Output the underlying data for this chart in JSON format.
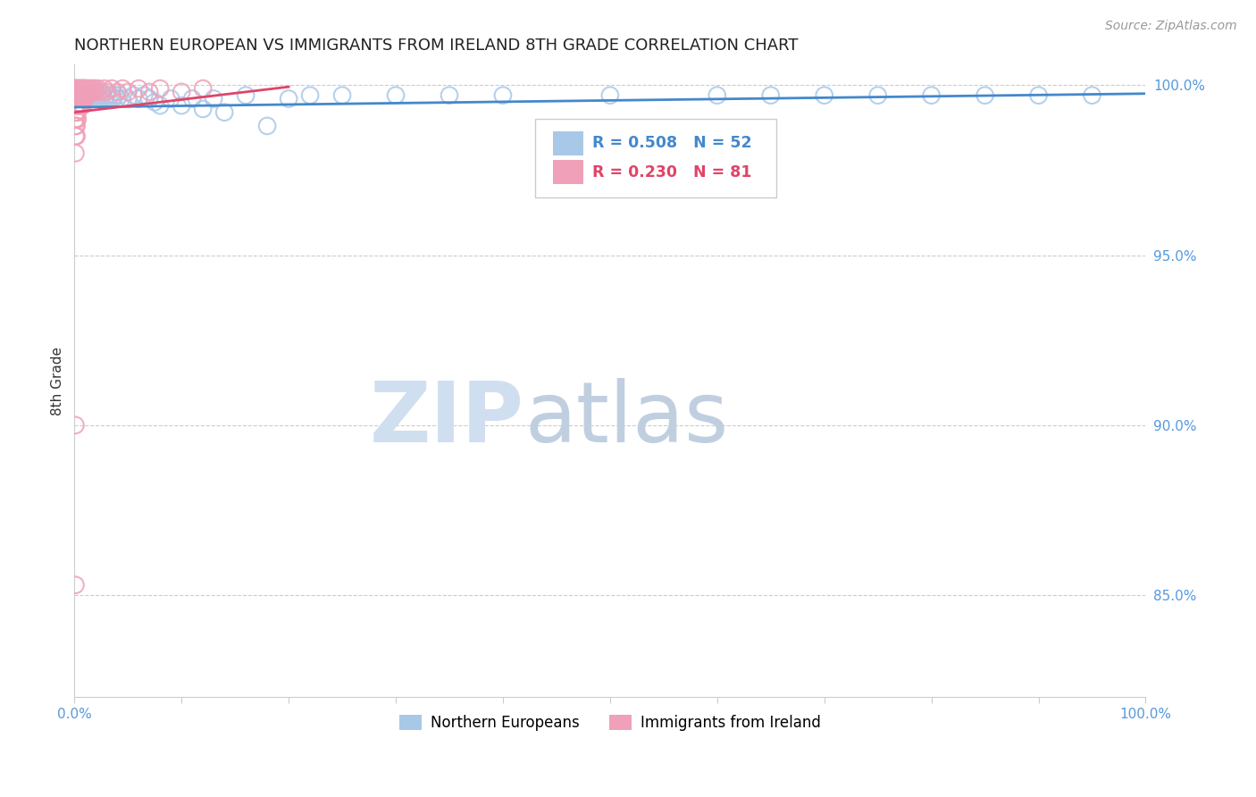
{
  "title": "NORTHERN EUROPEAN VS IMMIGRANTS FROM IRELAND 8TH GRADE CORRELATION CHART",
  "source": "Source: ZipAtlas.com",
  "ylabel": "8th Grade",
  "right_yticks": [
    "85.0%",
    "90.0%",
    "95.0%",
    "100.0%"
  ],
  "right_ytick_vals": [
    0.85,
    0.9,
    0.95,
    1.0
  ],
  "legend_blue_r": "R = 0.508",
  "legend_blue_n": "N = 52",
  "legend_pink_r": "R = 0.230",
  "legend_pink_n": "N = 81",
  "legend_label_blue": "Northern Europeans",
  "legend_label_pink": "Immigrants from Ireland",
  "blue_color": "#A8C8E8",
  "pink_color": "#F0A0B8",
  "blue_line_color": "#4488CC",
  "pink_line_color": "#E04468",
  "background_color": "#FFFFFF",
  "watermark_color": "#D0DFF0",
  "blue_scatter_x": [
    0.002,
    0.004,
    0.006,
    0.008,
    0.01,
    0.012,
    0.014,
    0.016,
    0.018,
    0.02,
    0.022,
    0.024,
    0.026,
    0.028,
    0.03,
    0.032,
    0.034,
    0.036,
    0.038,
    0.04,
    0.042,
    0.044,
    0.05,
    0.055,
    0.06,
    0.065,
    0.07,
    0.075,
    0.08,
    0.09,
    0.1,
    0.11,
    0.12,
    0.13,
    0.14,
    0.16,
    0.18,
    0.2,
    0.22,
    0.25,
    0.3,
    0.35,
    0.4,
    0.5,
    0.6,
    0.65,
    0.7,
    0.75,
    0.8,
    0.85,
    0.9,
    0.95
  ],
  "blue_scatter_y": [
    0.997,
    0.996,
    0.997,
    0.996,
    0.997,
    0.996,
    0.997,
    0.996,
    0.997,
    0.996,
    0.997,
    0.996,
    0.997,
    0.996,
    0.997,
    0.996,
    0.997,
    0.996,
    0.997,
    0.996,
    0.997,
    0.996,
    0.996,
    0.997,
    0.996,
    0.997,
    0.996,
    0.995,
    0.994,
    0.996,
    0.994,
    0.996,
    0.993,
    0.996,
    0.992,
    0.997,
    0.988,
    0.996,
    0.997,
    0.997,
    0.997,
    0.997,
    0.997,
    0.997,
    0.997,
    0.997,
    0.997,
    0.997,
    0.997,
    0.997,
    0.997,
    0.997
  ],
  "pink_scatter_x": [
    0.0005,
    0.001,
    0.001,
    0.0015,
    0.002,
    0.002,
    0.002,
    0.003,
    0.003,
    0.003,
    0.004,
    0.004,
    0.004,
    0.005,
    0.005,
    0.005,
    0.006,
    0.006,
    0.006,
    0.007,
    0.007,
    0.008,
    0.008,
    0.009,
    0.009,
    0.01,
    0.01,
    0.011,
    0.012,
    0.013,
    0.014,
    0.015,
    0.016,
    0.017,
    0.018,
    0.019,
    0.02,
    0.022,
    0.025,
    0.028,
    0.03,
    0.035,
    0.04,
    0.045,
    0.05,
    0.06,
    0.07,
    0.08,
    0.1,
    0.12,
    0.001,
    0.002,
    0.003,
    0.004,
    0.005,
    0.006,
    0.007,
    0.008,
    0.009,
    0.01,
    0.001,
    0.002,
    0.003,
    0.004,
    0.005,
    0.006,
    0.007,
    0.008,
    0.001,
    0.002,
    0.003,
    0.001,
    0.002,
    0.003,
    0.001,
    0.002,
    0.001,
    0.002,
    0.001,
    0.001,
    0.001
  ],
  "pink_scatter_y": [
    0.999,
    0.999,
    0.998,
    0.999,
    0.999,
    0.998,
    0.997,
    0.999,
    0.998,
    0.997,
    0.999,
    0.998,
    0.997,
    0.999,
    0.998,
    0.997,
    0.999,
    0.998,
    0.997,
    0.999,
    0.998,
    0.999,
    0.998,
    0.999,
    0.998,
    0.999,
    0.998,
    0.999,
    0.998,
    0.999,
    0.998,
    0.999,
    0.998,
    0.999,
    0.998,
    0.999,
    0.998,
    0.999,
    0.998,
    0.999,
    0.998,
    0.999,
    0.998,
    0.999,
    0.998,
    0.999,
    0.998,
    0.999,
    0.998,
    0.999,
    0.996,
    0.996,
    0.996,
    0.996,
    0.996,
    0.996,
    0.996,
    0.996,
    0.996,
    0.996,
    0.994,
    0.994,
    0.994,
    0.994,
    0.994,
    0.994,
    0.994,
    0.994,
    0.992,
    0.992,
    0.992,
    0.99,
    0.99,
    0.99,
    0.988,
    0.988,
    0.985,
    0.985,
    0.98,
    0.9,
    0.853
  ],
  "blue_line_x0": 0.0,
  "blue_line_x1": 1.0,
  "blue_line_y0": 0.9935,
  "blue_line_y1": 0.9975,
  "pink_line_x0": 0.0,
  "pink_line_x1": 0.2,
  "pink_line_y0": 0.992,
  "pink_line_y1": 0.9995,
  "ymin": 0.82,
  "ymax": 1.006,
  "xmin": 0.0,
  "xmax": 1.0
}
